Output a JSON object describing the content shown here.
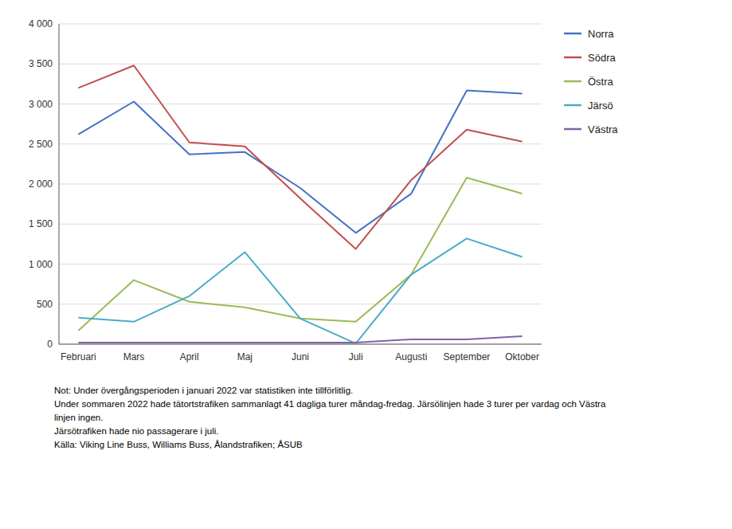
{
  "chart_data": {
    "type": "line",
    "categories": [
      "Februari",
      "Mars",
      "April",
      "Maj",
      "Juni",
      "Juli",
      "Augusti",
      "September",
      "Oktober"
    ],
    "series": [
      {
        "name": "Norra",
        "color": "#4472C4",
        "values": [
          2620,
          3030,
          2370,
          2400,
          1950,
          1390,
          1880,
          3170,
          3130
        ]
      },
      {
        "name": "Södra",
        "color": "#C0504D",
        "values": [
          3200,
          3480,
          2520,
          2470,
          1820,
          1190,
          2050,
          2680,
          2530
        ]
      },
      {
        "name": "Östra",
        "color": "#9BBB59",
        "values": [
          170,
          800,
          530,
          460,
          320,
          280,
          870,
          2080,
          1880
        ]
      },
      {
        "name": "Järsö",
        "color": "#4BACC6",
        "values": [
          330,
          280,
          600,
          1150,
          320,
          9,
          870,
          1320,
          1090
        ]
      },
      {
        "name": "Västra",
        "color": "#8064A2",
        "values": [
          20,
          20,
          20,
          20,
          20,
          20,
          60,
          60,
          100
        ]
      }
    ],
    "ylim": [
      0,
      4000
    ],
    "yticks": [
      0,
      500,
      {
        "value": 1000,
        "label": "1 000"
      },
      {
        "value": 1500,
        "label": "1 500"
      },
      {
        "value": 2000,
        "label": "2 000"
      },
      {
        "value": 2500,
        "label": "2 500"
      },
      {
        "value": 3000,
        "label": "3 000"
      },
      {
        "value": 3500,
        "label": "3 500"
      },
      {
        "value": 4000,
        "label": "4 000"
      }
    ],
    "grid": true,
    "legend": "right",
    "annotations": [
      "Not: Under övergångsperioden i januari 2022 var statistiken inte tillförlitlig.",
      "Under sommaren 2022 hade tätortstrafiken sammanlagt 41 dagliga turer måndag-fredag. Järsölinjen hade 3 turer per vardag och Västra",
      "linjen ingen.",
      "Järsötrafiken hade nio passagerare i juli.",
      "Källa: Viking Line Buss, Williams Buss, Ålandstrafiken; ÅSUB"
    ]
  }
}
